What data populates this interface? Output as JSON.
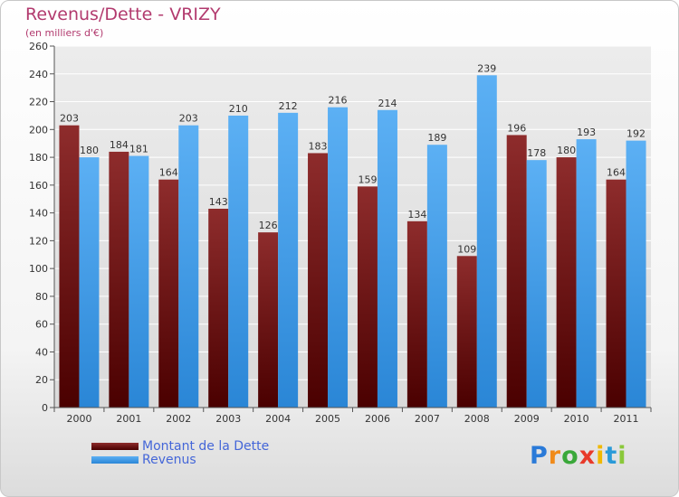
{
  "title": "Revenus/Dette - VRIZY",
  "subtitle": "(en milliers d'€)",
  "logo": {
    "text": "Proxiti",
    "letters": [
      "P",
      "r",
      "o",
      "x",
      "i",
      "t",
      "i"
    ],
    "colors": [
      "#2a7ad8",
      "#f08a1a",
      "#3aa83a",
      "#e83a2a",
      "#f0b800",
      "#2a9ad8",
      "#8ac83a"
    ]
  },
  "colors": {
    "dette": "#7a1a1a",
    "revenus": "#3f9be8",
    "axis_text": "#333333",
    "grid": "#ffffff",
    "title": "#b23a6e",
    "legend_text": "#4466d8"
  },
  "chart_data": {
    "type": "bar",
    "categories": [
      "2000",
      "2001",
      "2002",
      "2003",
      "2004",
      "2005",
      "2006",
      "2007",
      "2008",
      "2009",
      "2010",
      "2011"
    ],
    "series": [
      {
        "name": "Montant de la Dette",
        "values": [
          203,
          184,
          164,
          143,
          126,
          183,
          159,
          134,
          109,
          196,
          180,
          164
        ]
      },
      {
        "name": "Revenus",
        "values": [
          180,
          181,
          203,
          210,
          212,
          216,
          214,
          189,
          239,
          178,
          193,
          192
        ]
      }
    ],
    "title": "Revenus/Dette - VRIZY",
    "ylabel": "(en milliers d'€)",
    "ylim": [
      0,
      260
    ],
    "yticks": [
      0,
      20,
      40,
      60,
      80,
      100,
      120,
      140,
      160,
      180,
      200,
      220,
      240,
      260
    ],
    "grid": true,
    "legend": "bottom-left"
  }
}
